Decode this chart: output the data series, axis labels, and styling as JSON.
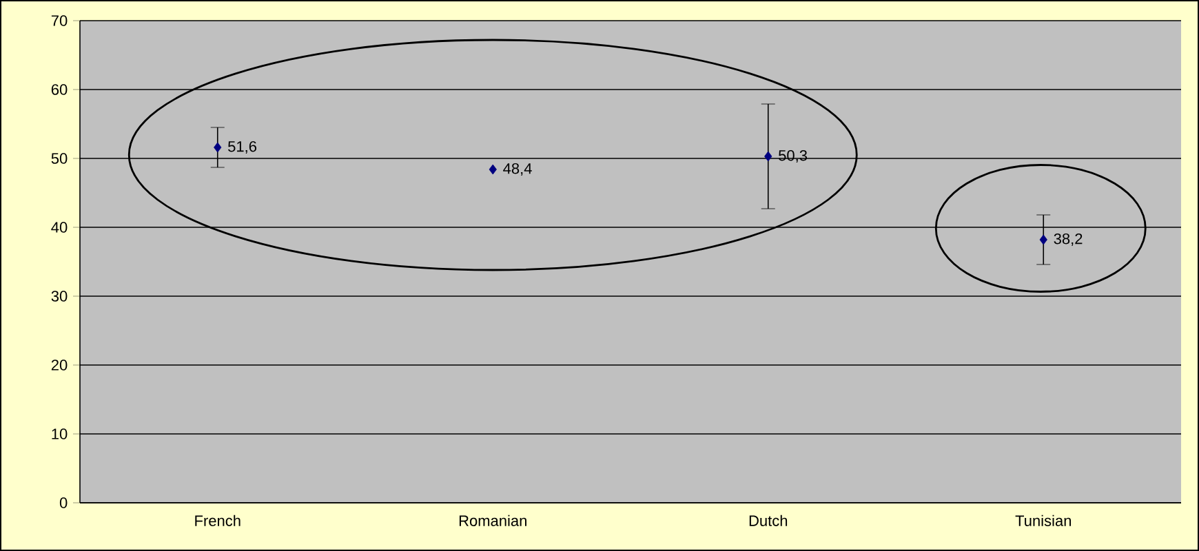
{
  "chart_data": {
    "type": "scatter",
    "categories": [
      "French",
      "Romanian",
      "Dutch",
      "Tunisian"
    ],
    "values": [
      51.6,
      48.4,
      50.3,
      38.2
    ],
    "errors": [
      2.9,
      null,
      7.6,
      3.6
    ],
    "value_labels": [
      "51,6",
      "48,4",
      "50,3",
      "38,2"
    ],
    "color": "#000080",
    "marker": "diamond",
    "ylim": [
      0,
      70
    ],
    "yticks": [
      0,
      10,
      20,
      30,
      40,
      50,
      60,
      70
    ],
    "grid": "y"
  }
}
